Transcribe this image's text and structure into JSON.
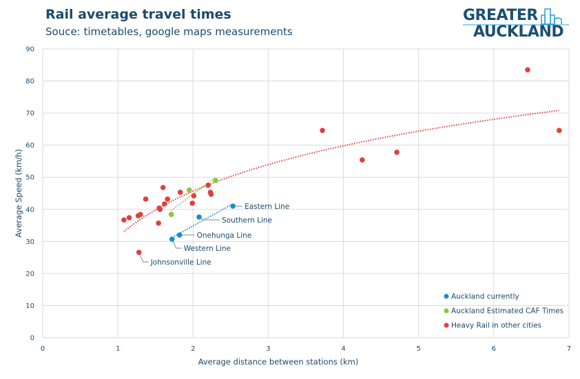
{
  "header": {
    "title": "Rail average travel times",
    "subtitle": "Souce: timetables, google maps measurements"
  },
  "logo": {
    "line1": "GREATER",
    "line2": "AUCKLAND"
  },
  "chart_data": {
    "type": "scatter",
    "xlabel": "Average distance between stations (km)",
    "ylabel": "Average Speed (km/h)",
    "xlim": [
      0,
      7
    ],
    "ylim": [
      0,
      90
    ],
    "xticks": [
      0,
      1,
      2,
      3,
      4,
      5,
      6,
      7
    ],
    "yticks": [
      0,
      10,
      20,
      30,
      40,
      50,
      60,
      70,
      80,
      90
    ],
    "grid": true,
    "legend_position": "bottom-right",
    "series": [
      {
        "name": "Auckland currently",
        "color": "#1a8fc8",
        "trendline": "linear",
        "points": [
          [
            1.72,
            30.7
          ],
          [
            1.82,
            32.0
          ],
          [
            2.08,
            37.6
          ],
          [
            2.53,
            41.0
          ]
        ]
      },
      {
        "name": "Auckland Estimated CAF Times",
        "color": "#8cc63f",
        "trendline": "linear",
        "points": [
          [
            1.71,
            38.4
          ],
          [
            1.95,
            46.0
          ],
          [
            2.3,
            49.0
          ]
        ]
      },
      {
        "name": "Heavy Rail in other cities",
        "color": "#e0403c",
        "trendline": "logarithmic",
        "points": [
          [
            1.08,
            36.7
          ],
          [
            1.15,
            37.4
          ],
          [
            1.27,
            38.0
          ],
          [
            1.3,
            38.4
          ],
          [
            1.28,
            26.6
          ],
          [
            1.37,
            43.2
          ],
          [
            1.54,
            35.7
          ],
          [
            1.55,
            40.4
          ],
          [
            1.56,
            40.0
          ],
          [
            1.6,
            46.8
          ],
          [
            1.62,
            41.7
          ],
          [
            1.66,
            43.2
          ],
          [
            1.83,
            45.3
          ],
          [
            1.99,
            41.9
          ],
          [
            2.01,
            44.2
          ],
          [
            2.2,
            47.5
          ],
          [
            2.23,
            45.3
          ],
          [
            2.24,
            44.7
          ],
          [
            3.72,
            64.6
          ],
          [
            4.25,
            55.4
          ],
          [
            4.71,
            57.8
          ],
          [
            6.45,
            83.5
          ],
          [
            6.87,
            64.6
          ]
        ]
      }
    ],
    "annotations": [
      {
        "text": "Eastern Line",
        "x": 2.53,
        "y": 41.0
      },
      {
        "text": "Southern Line",
        "x": 2.08,
        "y": 37.6
      },
      {
        "text": "Onehunga Line",
        "x": 1.82,
        "y": 32.0
      },
      {
        "text": "Western Line",
        "x": 1.72,
        "y": 30.7
      },
      {
        "text": "Johnsonville Line",
        "x": 1.28,
        "y": 26.6
      }
    ]
  }
}
